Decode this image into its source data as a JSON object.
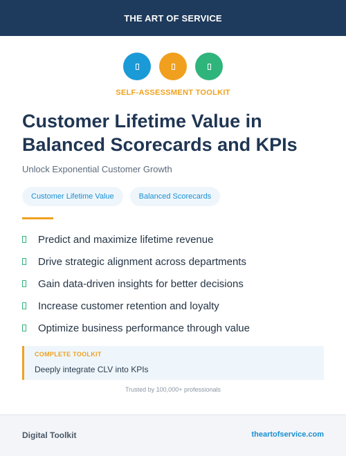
{
  "header": {
    "brand": "THE ART OF SERVICE"
  },
  "icons": [
    {
      "name": "blue-icon",
      "color": "#1a9ad6"
    },
    {
      "name": "orange-icon",
      "color": "#f0a01e"
    },
    {
      "name": "green-icon",
      "color": "#2fb47c"
    }
  ],
  "hero": {
    "eyebrow": "SELF-ASSESSMENT TOOLKIT",
    "title": "Customer Lifetime Value in Balanced Scorecards and KPIs",
    "subtitle": "Unlock Exponential Customer Growth"
  },
  "tags": [
    "Customer Lifetime Value",
    "Balanced Scorecards"
  ],
  "bullets": [
    "Predict and maximize lifetime revenue",
    "Drive strategic alignment across departments",
    "Gain data-driven insights for better decisions",
    "Increase customer retention and loyalty",
    "Optimize business performance through value"
  ],
  "callout": {
    "kicker": "COMPLETE TOOLKIT",
    "text": "Deeply integrate CLV into KPIs"
  },
  "trusted": "Trusted by 100,000+ professionals",
  "footer": {
    "left": "Digital Toolkit",
    "right": "theartofservice.com"
  },
  "colors": {
    "navy": "#1e3a5c",
    "accent_orange": "#f0a01e",
    "accent_blue": "#1a8fd1",
    "accent_green": "#2fb47c"
  }
}
